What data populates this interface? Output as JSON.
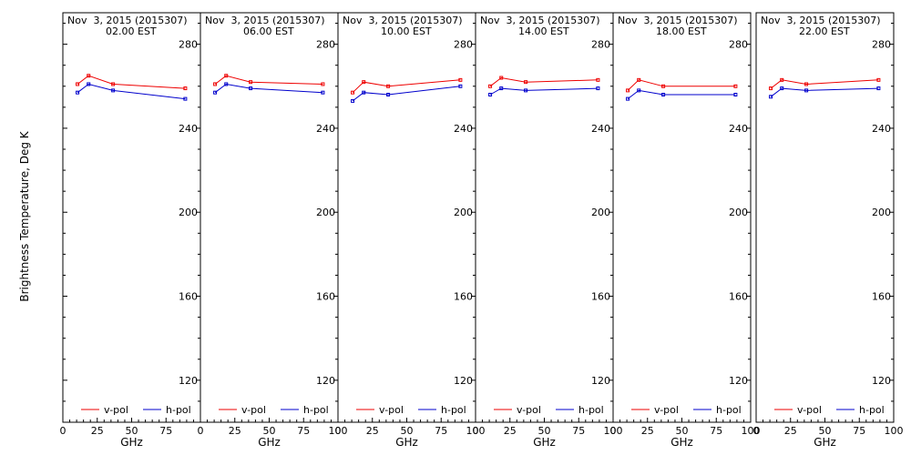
{
  "chart_data": {
    "type": "line",
    "ylabel": "Brightness Temperature, Deg K",
    "xlabel": "GHz",
    "xlim": [
      0,
      100
    ],
    "ylim": [
      100,
      295
    ],
    "y_ticks": [
      120,
      160,
      200,
      240,
      280
    ],
    "x_ticks": [
      0,
      25,
      50,
      75,
      100
    ],
    "x_tick_labels": [
      "0",
      "25",
      "50",
      "75",
      "100"
    ],
    "first_panel_x_tick_labels": [
      "0",
      "25",
      "50",
      "75"
    ],
    "colors": {
      "v-pol": "#ee0000",
      "h-pol": "#0000cc"
    },
    "legend": [
      "v-pol",
      "h-pol"
    ],
    "legend_position": "bottom",
    "x": [
      10.65,
      18.7,
      36.5,
      89.0
    ],
    "panels": [
      {
        "title_line1": "Nov  3, 2015 (2015307)",
        "title_line2": "02.00 EST",
        "series": [
          {
            "name": "v-pol",
            "values": [
              261,
              265,
              261,
              259
            ]
          },
          {
            "name": "h-pol",
            "values": [
              257,
              261,
              258,
              254
            ]
          }
        ]
      },
      {
        "title_line1": "Nov  3, 2015 (2015307)",
        "title_line2": "06.00 EST",
        "series": [
          {
            "name": "v-pol",
            "values": [
              261,
              265,
              262,
              261
            ]
          },
          {
            "name": "h-pol",
            "values": [
              257,
              261,
              259,
              257
            ]
          }
        ]
      },
      {
        "title_line1": "Nov  3, 2015 (2015307)",
        "title_line2": "10.00 EST",
        "series": [
          {
            "name": "v-pol",
            "values": [
              257,
              262,
              260,
              263
            ]
          },
          {
            "name": "h-pol",
            "values": [
              253,
              257,
              256,
              260
            ]
          }
        ]
      },
      {
        "title_line1": "Nov  3, 2015 (2015307)",
        "title_line2": "14.00 EST",
        "series": [
          {
            "name": "v-pol",
            "values": [
              260,
              264,
              262,
              263
            ]
          },
          {
            "name": "h-pol",
            "values": [
              256,
              259,
              258,
              259
            ]
          }
        ]
      },
      {
        "title_line1": "Nov  3, 2015 (2015307)",
        "title_line2": "18.00 EST",
        "series": [
          {
            "name": "v-pol",
            "values": [
              258,
              263,
              260,
              260
            ]
          },
          {
            "name": "h-pol",
            "values": [
              254,
              258,
              256,
              256
            ]
          }
        ]
      },
      {
        "title_line1": "Nov  3, 2015 (2015307)",
        "title_line2": "22.00 EST",
        "series": [
          {
            "name": "v-pol",
            "values": [
              259,
              263,
              261,
              263
            ]
          },
          {
            "name": "h-pol",
            "values": [
              255,
              259,
              258,
              259
            ]
          }
        ]
      }
    ]
  }
}
